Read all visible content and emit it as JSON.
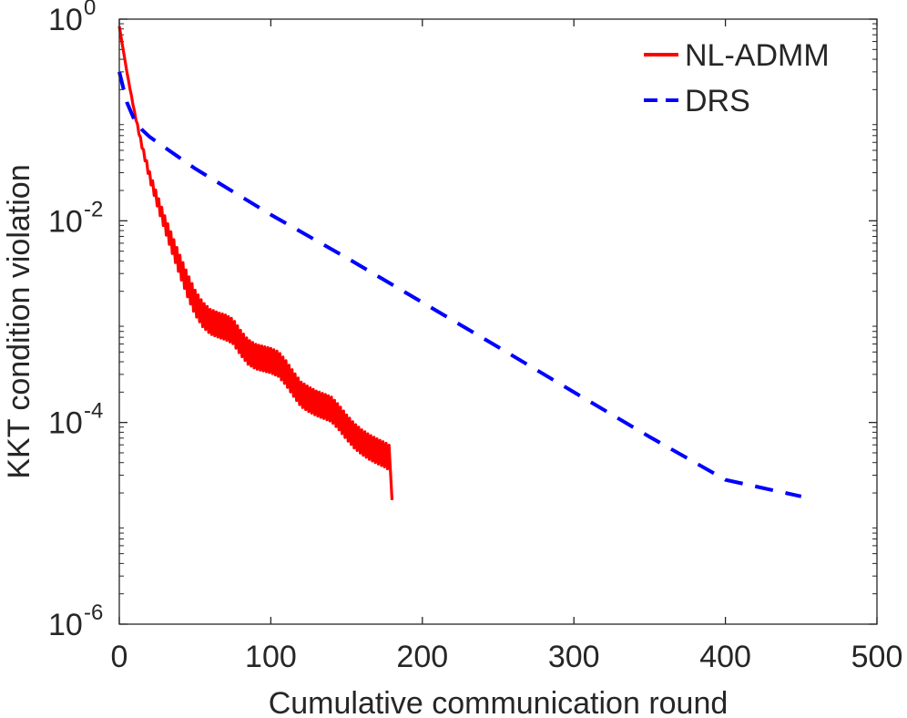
{
  "chart_data": {
    "type": "line",
    "y_scale": "log",
    "xlabel": "Cumulative communication round",
    "ylabel": "KKT condition violation",
    "xlim": [
      0,
      500
    ],
    "ylim": [
      1e-06,
      1
    ],
    "x_ticks": [
      {
        "value": 0,
        "label": "0"
      },
      {
        "value": 100,
        "label": "100"
      },
      {
        "value": 200,
        "label": "200"
      },
      {
        "value": 300,
        "label": "300"
      },
      {
        "value": 400,
        "label": "400"
      },
      {
        "value": 500,
        "label": "500"
      }
    ],
    "y_ticks": [
      {
        "value": 1,
        "base": "10",
        "exp": "0"
      },
      {
        "value": 0.01,
        "base": "10",
        "exp": "-2"
      },
      {
        "value": 0.0001,
        "base": "10",
        "exp": "-4"
      },
      {
        "value": 1e-06,
        "base": "10",
        "exp": "-6"
      }
    ],
    "legend_position": "top-right",
    "series": [
      {
        "name": "NL-ADMM",
        "color": "#ff0000",
        "style": "solid",
        "x": [
          0,
          5,
          10,
          15,
          20,
          25,
          30,
          35,
          40,
          45,
          50,
          55,
          60,
          65,
          70,
          75,
          80,
          85,
          90,
          95,
          100,
          105,
          110,
          115,
          120,
          125,
          130,
          135,
          140,
          145,
          150,
          155,
          160,
          165,
          170,
          175,
          178,
          180
        ],
        "y": [
          0.85,
          0.3,
          0.12,
          0.055,
          0.028,
          0.016,
          0.0095,
          0.0058,
          0.0036,
          0.0023,
          0.00155,
          0.00118,
          0.001,
          0.00093,
          0.00088,
          0.0008,
          0.00062,
          0.0005,
          0.00045,
          0.00043,
          0.00041,
          0.00038,
          0.00031,
          0.00024,
          0.00019,
          0.00017,
          0.000155,
          0.000145,
          0.000135,
          0.000112,
          9e-05,
          7.4e-05,
          6.4e-05,
          5.7e-05,
          5.2e-05,
          4.8e-05,
          4.5e-05,
          1.7e-05
        ],
        "oscillation_band": [
          1.0,
          1.0,
          1.05,
          1.1,
          1.2,
          1.3,
          1.4,
          1.5,
          1.6,
          1.7,
          1.75,
          1.75,
          1.75,
          1.75,
          1.75,
          1.75,
          1.75,
          1.75,
          1.75,
          1.75,
          1.75,
          1.75,
          1.75,
          1.75,
          1.75,
          1.75,
          1.75,
          1.75,
          1.75,
          1.75,
          1.75,
          1.75,
          1.75,
          1.75,
          1.75,
          1.75,
          1.75,
          1.0
        ]
      },
      {
        "name": "DRS",
        "color": "#0000ff",
        "style": "dashed",
        "x": [
          0,
          5,
          10,
          15,
          20,
          50,
          100,
          150,
          200,
          250,
          300,
          350,
          400,
          450
        ],
        "y": [
          0.3,
          0.15,
          0.1,
          0.08,
          0.068,
          0.033,
          0.0115,
          0.0043,
          0.00155,
          0.00056,
          0.0002,
          7.2e-05,
          2.7e-05,
          1.85e-05
        ]
      }
    ]
  }
}
